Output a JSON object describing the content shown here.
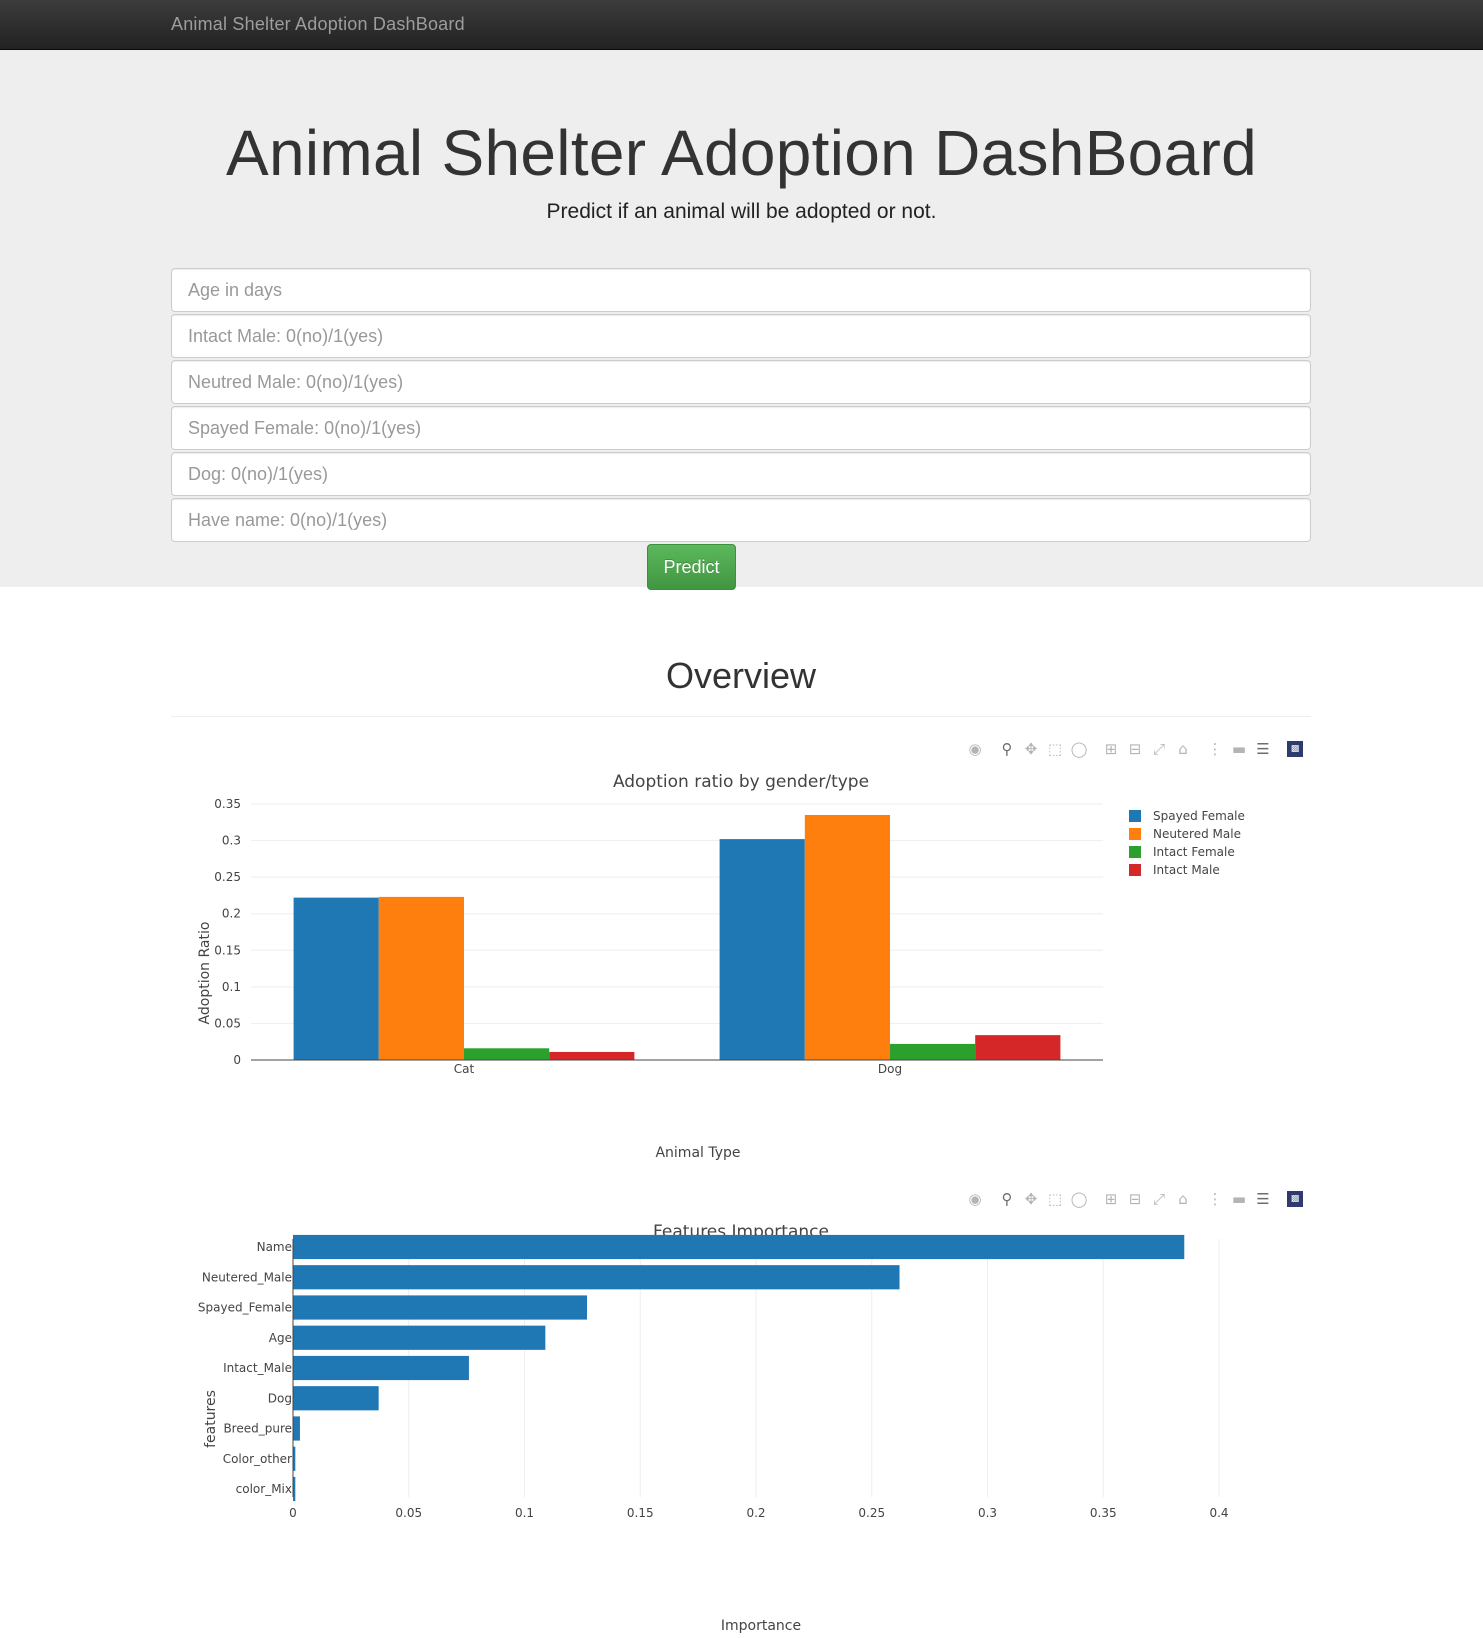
{
  "navbar": {
    "brand": "Animal Shelter Adoption DashBoard"
  },
  "hero": {
    "title": "Animal Shelter Adoption DashBoard",
    "subtitle": "Predict if an animal will be adopted or not."
  },
  "form": {
    "age_placeholder": "Age in days",
    "intact_male_placeholder": "Intact Male: 0(no)/1(yes)",
    "neutred_male_placeholder": "Neutred Male: 0(no)/1(yes)",
    "spayed_female_placeholder": "Spayed Female: 0(no)/1(yes)",
    "dog_placeholder": "Dog: 0(no)/1(yes)",
    "have_name_placeholder": "Have name: 0(no)/1(yes)",
    "predict_label": "Predict"
  },
  "overview": {
    "title": "Overview"
  },
  "modebar_icons": [
    "camera-icon",
    "zoom-icon",
    "pan-icon",
    "box-select-icon",
    "lasso-icon",
    "zoom-in-icon",
    "zoom-out-icon",
    "autoscale-icon",
    "reset-axes-icon",
    "spike-lines-icon",
    "hover-closest-icon",
    "hover-compare-icon",
    "plotly-logo-icon"
  ],
  "colors": {
    "blue": "#1f77b4",
    "orange": "#ff7f0e",
    "green": "#2ca02c",
    "red": "#d62728",
    "success": "#5cb85c"
  },
  "chart_data": [
    {
      "type": "bar",
      "title": "Adoption ratio by gender/type",
      "xlabel": "Animal Type",
      "ylabel": "Adoption Ratio",
      "categories": [
        "Cat",
        "Dog"
      ],
      "series": [
        {
          "name": "Spayed Female",
          "values": [
            0.222,
            0.302
          ]
        },
        {
          "name": "Neutered Male",
          "values": [
            0.223,
            0.335
          ]
        },
        {
          "name": "Intact Female",
          "values": [
            0.016,
            0.022
          ]
        },
        {
          "name": "Intact Male",
          "values": [
            0.011,
            0.034
          ]
        }
      ],
      "ylim": [
        0,
        0.35
      ],
      "yticks": [
        0,
        0.05,
        0.1,
        0.15,
        0.2,
        0.25,
        0.3,
        0.35
      ],
      "ytick_labels": [
        "0",
        "0.05",
        "0.1",
        "0.15",
        "0.2",
        "0.25",
        "0.3",
        "0.35"
      ],
      "grid": true,
      "legend": "right"
    },
    {
      "type": "bar",
      "orientation": "horizontal",
      "title": "Features Importance",
      "xlabel": "Importance",
      "ylabel": "features",
      "categories": [
        "Name",
        "Neutered_Male",
        "Spayed_Female",
        "Age",
        "Intact_Male",
        "Dog",
        "Breed_pure",
        "Color_other",
        "color_Mix"
      ],
      "values": [
        0.385,
        0.262,
        0.127,
        0.109,
        0.076,
        0.037,
        0.003,
        0.001,
        0.001
      ],
      "xlim": [
        0,
        0.4
      ],
      "xticks": [
        0,
        0.05,
        0.1,
        0.15,
        0.2,
        0.25,
        0.3,
        0.35,
        0.4
      ],
      "xtick_labels": [
        "0",
        "0.05",
        "0.1",
        "0.15",
        "0.2",
        "0.25",
        "0.3",
        "0.35",
        "0.4"
      ],
      "grid": true
    }
  ]
}
